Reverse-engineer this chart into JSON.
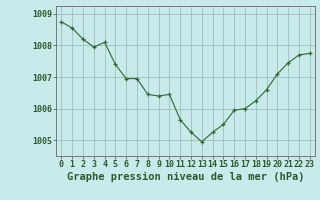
{
  "x": [
    0,
    1,
    2,
    3,
    4,
    5,
    6,
    7,
    8,
    9,
    10,
    11,
    12,
    13,
    14,
    15,
    16,
    17,
    18,
    19,
    20,
    21,
    22,
    23
  ],
  "y": [
    1008.75,
    1008.55,
    1008.2,
    1007.95,
    1008.1,
    1007.4,
    1006.95,
    1006.95,
    1006.45,
    1006.4,
    1006.45,
    1005.65,
    1005.25,
    1004.95,
    1005.25,
    1005.5,
    1005.95,
    1006.0,
    1006.25,
    1006.6,
    1007.1,
    1007.45,
    1007.7,
    1007.75
  ],
  "line_color": "#2d6a2d",
  "marker_color": "#2d6a2d",
  "bg_color": "#c8eaea",
  "grid_color": "#9bbdbd",
  "axis_label_color": "#2d5a2d",
  "border_color": "#777777",
  "title": "Graphe pression niveau de la mer (hPa)",
  "ylim_min": 1004.5,
  "ylim_max": 1009.25,
  "yticks": [
    1005,
    1006,
    1007,
    1008,
    1009
  ],
  "xticks": [
    0,
    1,
    2,
    3,
    4,
    5,
    6,
    7,
    8,
    9,
    10,
    11,
    12,
    13,
    14,
    15,
    16,
    17,
    18,
    19,
    20,
    21,
    22,
    23
  ],
  "xtick_labels": [
    "0",
    "1",
    "2",
    "3",
    "4",
    "5",
    "6",
    "7",
    "8",
    "9",
    "10",
    "11",
    "12",
    "13",
    "14",
    "15",
    "16",
    "17",
    "18",
    "19",
    "20",
    "21",
    "22",
    "23"
  ],
  "title_fontsize": 7.5,
  "tick_fontsize": 6.0
}
